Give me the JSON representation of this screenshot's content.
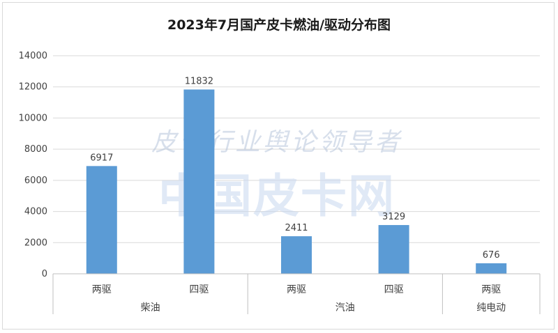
{
  "chart_data": {
    "type": "bar",
    "title": "2023年7月国产皮卡燃油/驱动分布图",
    "ylim": [
      0,
      14000
    ],
    "yticks": [
      0,
      2000,
      4000,
      6000,
      8000,
      10000,
      12000,
      14000
    ],
    "categories": [
      "两驱",
      "四驱",
      "两驱",
      "四驱",
      "两驱"
    ],
    "groups": [
      {
        "label": "柴油",
        "span": 2
      },
      {
        "label": "汽油",
        "span": 2
      },
      {
        "label": "纯电动",
        "span": 1
      }
    ],
    "values": [
      6917,
      11832,
      2411,
      3129,
      676
    ],
    "bar_color": "#5b9bd5",
    "grid": true,
    "legend": "none"
  },
  "watermark": {
    "line1": "皮卡行业舆论领导者",
    "line2": "中国皮卡网"
  }
}
